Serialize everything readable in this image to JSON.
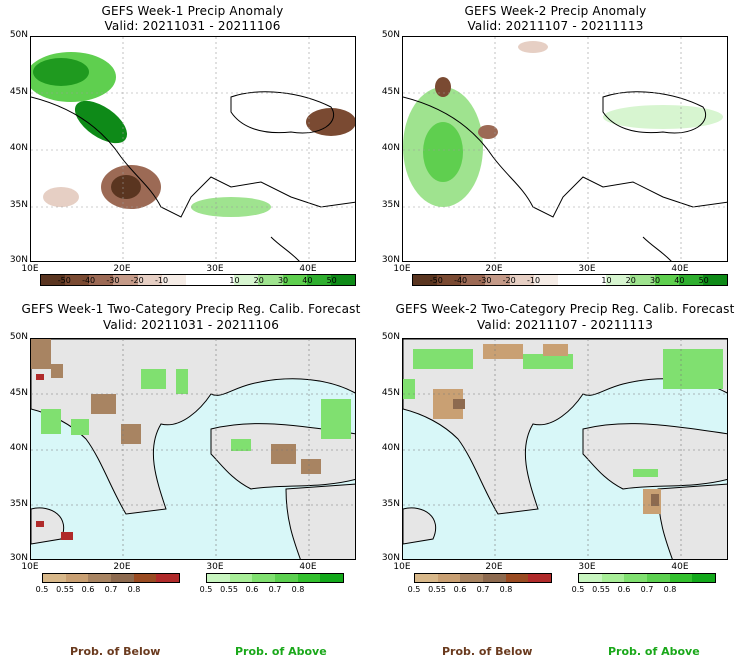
{
  "panels": [
    {
      "title": "GEFS Week-1 Precip Anomaly",
      "valid": "Valid: 20211031 - 20211106",
      "kind": "anom"
    },
    {
      "title": "GEFS Week-2 Precip Anomaly",
      "valid": "Valid: 20211107 - 20211113",
      "kind": "anom"
    },
    {
      "title": "GEFS Week-1 Two-Category Precip Reg. Calib. Forecast",
      "valid": "Valid: 20211031 - 20211106",
      "kind": "prob"
    },
    {
      "title": "GEFS Week-2 Two-Category Precip Reg. Calib. Forecast",
      "valid": "Valid: 20211107 - 20211113",
      "kind": "prob"
    }
  ],
  "lat_labels": [
    "50N",
    "45N",
    "40N",
    "35N",
    "30N"
  ],
  "lon_labels": [
    "10E",
    "20E",
    "30E",
    "40E"
  ],
  "anom_colorbar": {
    "labels": [
      "-50",
      "-40",
      "-30",
      "-20",
      "-10",
      "10",
      "20",
      "30",
      "40",
      "50"
    ],
    "colors": [
      "#5a3520",
      "#7a4a32",
      "#9c6a55",
      "#c49a88",
      "#e6cfc4",
      "#f5ece6",
      "#ffffff",
      "#ffffff",
      "#d7f5d0",
      "#9fe38f",
      "#5fcf4f",
      "#2fae2f",
      "#0e8a18"
    ]
  },
  "below_colorbar": {
    "labels": [
      "0.5",
      "0.55",
      "0.6",
      "0.7",
      "0.8"
    ],
    "colors": [
      "#d8b88a",
      "#c9a073",
      "#a88462",
      "#8d6a4f",
      "#9a4b22",
      "#b02a2a"
    ]
  },
  "above_colorbar": {
    "labels": [
      "0.5",
      "0.55",
      "0.6",
      "0.7",
      "0.8"
    ],
    "colors": [
      "#c8f5c0",
      "#a8ee98",
      "#80e070",
      "#5cd050",
      "#33c02e",
      "#12a81a"
    ]
  },
  "prob_below_label": "Prob. of Below",
  "prob_above_label": "Prob. of Above",
  "colors": {
    "sea_prob": "#d8f7f8",
    "land_prob": "#e6e6e6",
    "below_text": "#6a3a1e",
    "above_text": "#1aa81a"
  }
}
